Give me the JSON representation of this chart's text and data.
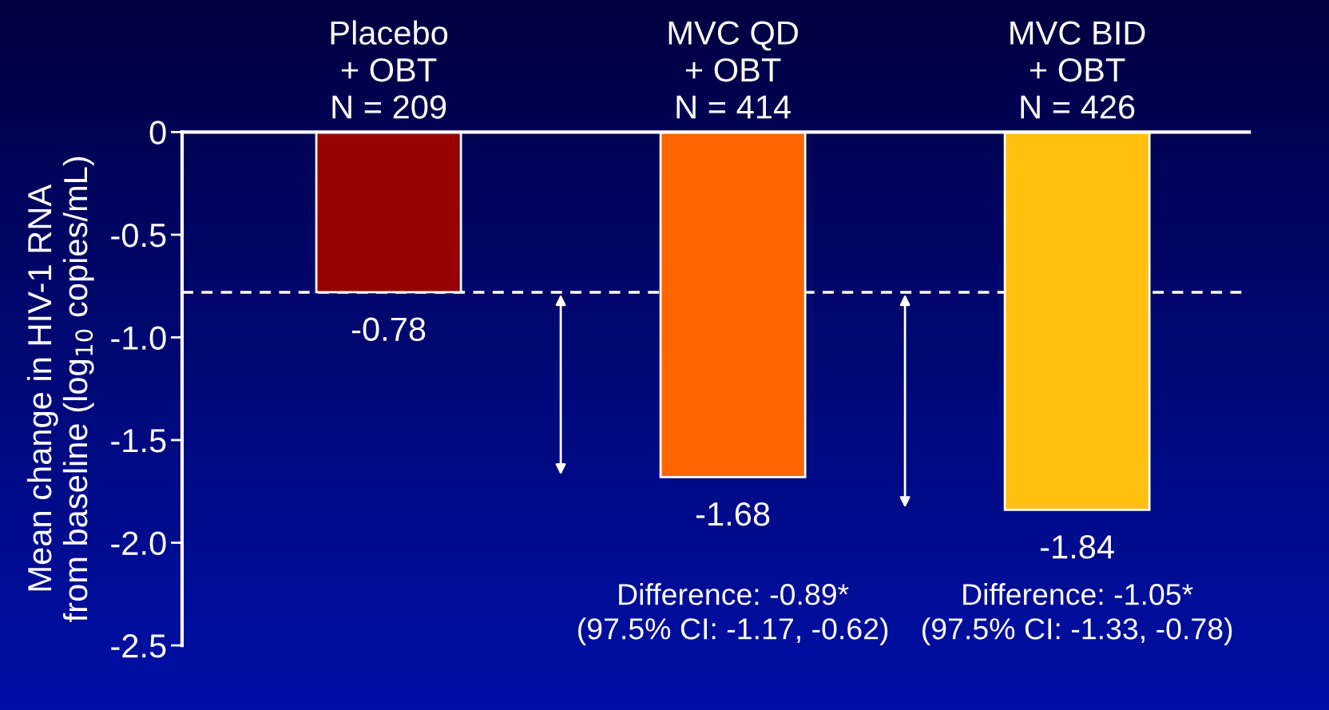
{
  "chart_data": {
    "type": "bar",
    "categories": [
      "Placebo\n+ OBT\nN = 209",
      "MVC QD\n+ OBT\nN = 414",
      "MVC BID\n+ OBT\nN = 426"
    ],
    "values": [
      -0.78,
      -1.68,
      -1.84
    ],
    "colors": [
      "#990000",
      "#ff6600",
      "#ffc010"
    ],
    "data_labels": true,
    "ylabel": "Mean change in HIV-1 RNA\nfrom baseline (log$_{10}$ copies/mL)",
    "ylim": [
      -2.5,
      0
    ],
    "yticks": [
      {
        "value": 0,
        "label": "0"
      },
      -0.5,
      {
        "value": -1,
        "label": "-1.0"
      },
      -1.5,
      {
        "value": -2,
        "label": "-2.0"
      },
      -2.5
    ],
    "ref_lines": [
      {
        "axis": "y",
        "value": -0.78,
        "color": "#ffffff",
        "line_style": "dashed"
      }
    ],
    "annotations": [
      "Difference: -0.89*\n(97.5% CI: -1.17, -0.62)",
      "Difference: -1.05*\n(97.5% CI: -1.33, -0.78)"
    ],
    "grid": false
  }
}
